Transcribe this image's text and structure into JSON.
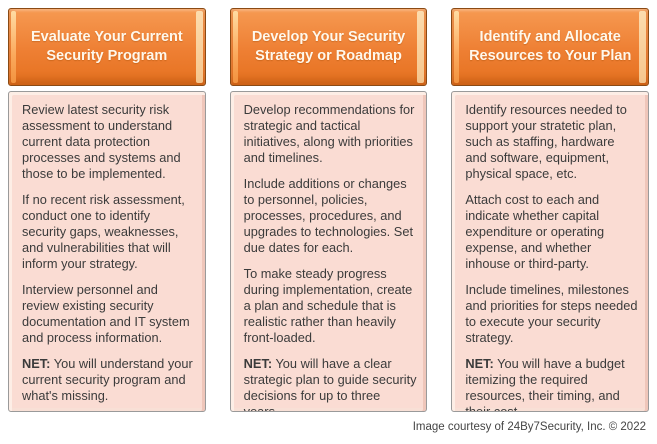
{
  "colors": {
    "header_orange": "#ee7f33",
    "header_orange_light": "#f69a52",
    "header_orange_dark": "#e5711f",
    "header_border": "#8a4a14",
    "header_text": "#fff8ec",
    "body_fill": "#fadcd3",
    "body_bevel_light": "#fdeee6",
    "body_border": "#9a9a9a",
    "text_color": "#3b3b3b"
  },
  "columns": [
    {
      "header": "Evaluate Your Current\nSecurity Program",
      "paragraphs": [
        "Review latest security risk assessment to understand current data protection processes and systems and those to be implemented.",
        "If no recent risk assessment, conduct one to identify security gaps, weaknesses, and vulnerabilities that will inform your strategy.",
        "Interview personnel and review existing security documentation and IT system and process information."
      ],
      "net_label": "NET:",
      "net_text": "You will understand your current security program and what's missing."
    },
    {
      "header": "Develop Your Security\nStrategy or Roadmap",
      "paragraphs": [
        "Develop recommendations for strategic and tactical initiatives, along with priorities and timelines.",
        "Include additions or changes to personnel, policies, processes, procedures, and upgrades to technologies. Set due dates for each.",
        "To make steady progress during implementation, create a plan and schedule that is realistic rather than heavily front-loaded."
      ],
      "net_label": "NET:",
      "net_text": "You will have a clear strategic plan to guide security decisions for up to three years."
    },
    {
      "header": "Identify and Allocate\nResources to Your Plan",
      "paragraphs": [
        "Identify resources needed to support your stratetic plan, such as staffing, hardware and software, equipment, physical space, etc.",
        "Attach cost to each and indicate whether capital expenditure or operating expense, and whether inhouse or third-party.",
        "Include timelines, milestones and priorities for steps needed to execute your security strategy."
      ],
      "net_label": "NET:",
      "net_text": "You will have a budget itemizing the required resources, their timing, and their cost."
    }
  ],
  "footer": {
    "credit": "Image courtesy of 24By7Security, Inc. © 2022"
  }
}
